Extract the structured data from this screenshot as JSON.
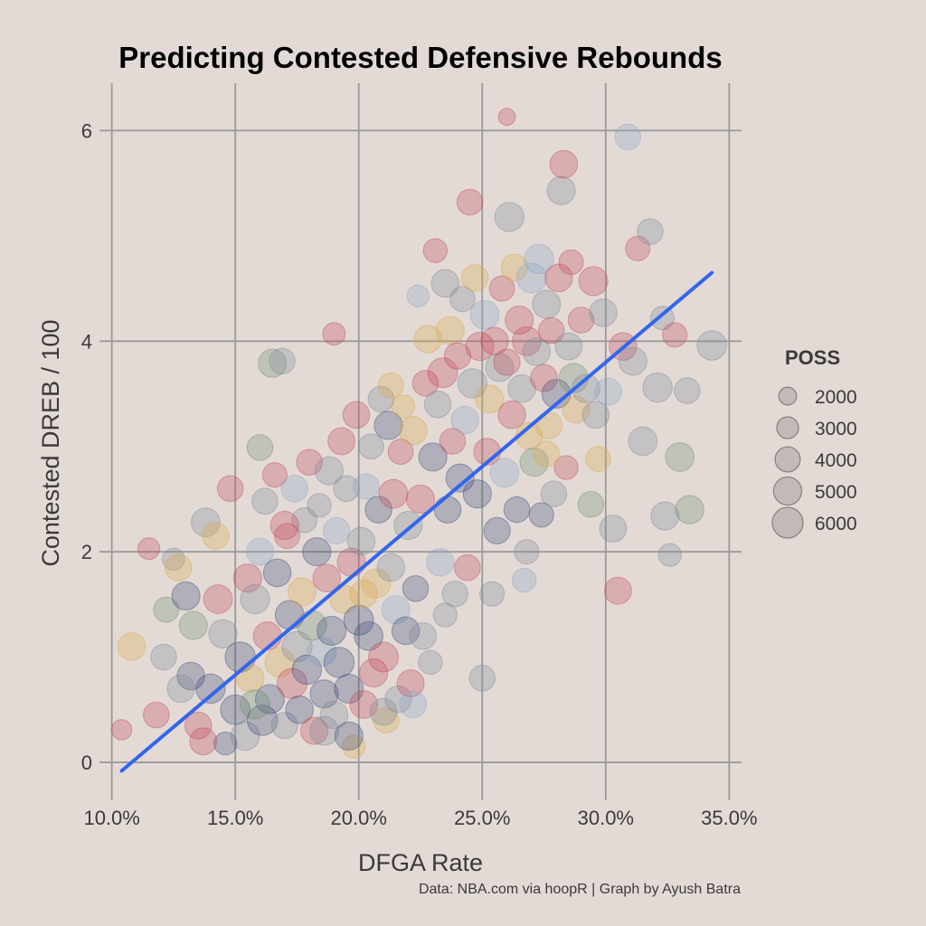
{
  "chart_data": {
    "type": "scatter",
    "title": "Predicting Contested Defensive Rebounds",
    "xlabel": "DFGA Rate",
    "ylabel": "Contested DREB / 100",
    "caption": "Data: NBA.com via hoopR | Graph by Ayush Batra",
    "xlim": [
      0.095,
      0.355
    ],
    "ylim": [
      -0.3,
      6.45
    ],
    "x_ticks": [
      0.1,
      0.15,
      0.2,
      0.25,
      0.3,
      0.35
    ],
    "x_tick_labels": [
      "10.0%",
      "15.0%",
      "20.0%",
      "25.0%",
      "30.0%",
      "35.0%"
    ],
    "y_ticks": [
      0,
      2,
      4,
      6
    ],
    "y_tick_labels": [
      "0",
      "2",
      "4",
      "6"
    ],
    "grid": true,
    "legend": {
      "title": "POSS",
      "placement": "right",
      "sizes": [
        2000,
        3000,
        4000,
        5000,
        6000
      ],
      "labels": [
        "2000",
        "3000",
        "4000",
        "5000",
        "6000"
      ]
    },
    "trend_line": {
      "x": [
        0.104,
        0.343
      ],
      "y": [
        -0.08,
        4.65
      ],
      "color": "#3366ee"
    },
    "palette": [
      "#7d8a99",
      "#3a4d7a",
      "#c24a5a",
      "#d9a84a",
      "#6f8f6f",
      "#8aa6c6",
      "#e07a7a"
    ],
    "point_opacity": 0.3,
    "points": [
      [
        0.115,
        2.03,
        3000,
        2
      ],
      [
        0.104,
        0.31,
        2600,
        2
      ],
      [
        0.108,
        1.1,
        4800,
        3
      ],
      [
        0.118,
        0.45,
        4200,
        2
      ],
      [
        0.121,
        1.0,
        4200,
        0
      ],
      [
        0.122,
        1.45,
        4000,
        4
      ],
      [
        0.125,
        1.93,
        3100,
        0
      ],
      [
        0.127,
        1.85,
        4500,
        3
      ],
      [
        0.13,
        1.58,
        5000,
        1
      ],
      [
        0.132,
        0.82,
        4800,
        1
      ],
      [
        0.135,
        0.35,
        4500,
        2
      ],
      [
        0.138,
        2.28,
        5200,
        0
      ],
      [
        0.14,
        0.7,
        5400,
        1
      ],
      [
        0.142,
        2.15,
        4500,
        3
      ],
      [
        0.145,
        1.22,
        5100,
        0
      ],
      [
        0.146,
        0.18,
        3300,
        1
      ],
      [
        0.148,
        2.6,
        4200,
        2
      ],
      [
        0.15,
        0.5,
        5500,
        1
      ],
      [
        0.152,
        1.0,
        5800,
        1
      ],
      [
        0.154,
        0.25,
        5200,
        0
      ],
      [
        0.155,
        1.75,
        5000,
        2
      ],
      [
        0.156,
        0.8,
        4800,
        3
      ],
      [
        0.158,
        1.55,
        5400,
        0
      ],
      [
        0.16,
        2.0,
        4600,
        5
      ],
      [
        0.16,
        2.99,
        4200,
        4
      ],
      [
        0.161,
        0.4,
        5800,
        1
      ],
      [
        0.162,
        2.48,
        4200,
        0
      ],
      [
        0.163,
        1.2,
        5000,
        2
      ],
      [
        0.164,
        0.6,
        5300,
        1
      ],
      [
        0.165,
        3.79,
        5000,
        4
      ],
      [
        0.166,
        2.73,
        3800,
        2
      ],
      [
        0.167,
        1.8,
        4800,
        1
      ],
      [
        0.168,
        0.95,
        5500,
        3
      ],
      [
        0.169,
        3.81,
        4200,
        0
      ],
      [
        0.17,
        0.35,
        4400,
        0
      ],
      [
        0.171,
        2.15,
        4000,
        2
      ],
      [
        0.172,
        1.4,
        5200,
        1
      ],
      [
        0.173,
        0.75,
        5600,
        2
      ],
      [
        0.174,
        2.6,
        4500,
        5
      ],
      [
        0.175,
        1.1,
        5800,
        0
      ],
      [
        0.176,
        0.5,
        4800,
        1
      ],
      [
        0.177,
        1.62,
        5000,
        3
      ],
      [
        0.178,
        2.3,
        4000,
        0
      ],
      [
        0.179,
        0.88,
        5400,
        1
      ],
      [
        0.18,
        2.85,
        4200,
        2
      ],
      [
        0.181,
        1.3,
        5500,
        4
      ],
      [
        0.182,
        0.3,
        4700,
        2
      ],
      [
        0.183,
        2.0,
        5000,
        1
      ],
      [
        0.184,
        2.44,
        3600,
        0
      ],
      [
        0.185,
        1.05,
        5200,
        5
      ],
      [
        0.186,
        0.65,
        5000,
        1
      ],
      [
        0.187,
        1.75,
        4800,
        2
      ],
      [
        0.188,
        2.77,
        5000,
        0
      ],
      [
        0.189,
        1.25,
        5300,
        1
      ],
      [
        0.19,
        4.07,
        3200,
        2
      ],
      [
        0.19,
        0.45,
        4800,
        0
      ],
      [
        0.191,
        2.2,
        4400,
        5
      ],
      [
        0.192,
        0.95,
        5800,
        1
      ],
      [
        0.193,
        3.05,
        4600,
        2
      ],
      [
        0.194,
        1.55,
        5000,
        3
      ],
      [
        0.195,
        2.6,
        4200,
        0
      ],
      [
        0.196,
        0.7,
        5300,
        1
      ],
      [
        0.197,
        1.9,
        5000,
        2
      ],
      [
        0.198,
        0.15,
        3300,
        3
      ],
      [
        0.199,
        3.3,
        4500,
        2
      ],
      [
        0.2,
        1.35,
        5600,
        1
      ],
      [
        0.201,
        2.1,
        4800,
        0
      ],
      [
        0.202,
        0.55,
        4800,
        2
      ],
      [
        0.203,
        2.62,
        4200,
        5
      ],
      [
        0.204,
        1.2,
        5200,
        1
      ],
      [
        0.205,
        3.0,
        4000,
        0
      ],
      [
        0.206,
        0.85,
        5000,
        2
      ],
      [
        0.207,
        1.7,
        5400,
        3
      ],
      [
        0.208,
        2.4,
        4500,
        1
      ],
      [
        0.209,
        3.45,
        4200,
        0
      ],
      [
        0.21,
        1.0,
        5600,
        2
      ],
      [
        0.211,
        0.4,
        4200,
        3
      ],
      [
        0.212,
        3.2,
        5000,
        1
      ],
      [
        0.213,
        1.85,
        4800,
        0
      ],
      [
        0.214,
        2.55,
        5200,
        2
      ],
      [
        0.215,
        1.45,
        5000,
        5
      ],
      [
        0.216,
        0.6,
        4500,
        0
      ],
      [
        0.217,
        2.95,
        4000,
        2
      ],
      [
        0.218,
        3.38,
        3400,
        3
      ],
      [
        0.219,
        1.25,
        4800,
        1
      ],
      [
        0.22,
        2.25,
        5000,
        0
      ],
      [
        0.221,
        0.75,
        4600,
        2
      ],
      [
        0.222,
        3.15,
        5000,
        3
      ],
      [
        0.223,
        1.65,
        4200,
        1
      ],
      [
        0.224,
        4.43,
        3000,
        5
      ],
      [
        0.225,
        2.5,
        5000,
        2
      ],
      [
        0.226,
        1.2,
        4500,
        0
      ],
      [
        0.227,
        3.6,
        4200,
        2
      ],
      [
        0.228,
        4.02,
        4800,
        3
      ],
      [
        0.229,
        0.95,
        3600,
        0
      ],
      [
        0.23,
        2.9,
        5000,
        1
      ],
      [
        0.231,
        4.86,
        3600,
        2
      ],
      [
        0.232,
        3.4,
        4500,
        0
      ],
      [
        0.233,
        1.9,
        4800,
        5
      ],
      [
        0.234,
        3.7,
        5600,
        2
      ],
      [
        0.235,
        4.55,
        4800,
        0
      ],
      [
        0.236,
        2.4,
        4500,
        1
      ],
      [
        0.237,
        4.1,
        5000,
        3
      ],
      [
        0.238,
        3.05,
        4200,
        2
      ],
      [
        0.239,
        1.6,
        4200,
        0
      ],
      [
        0.24,
        3.86,
        4400,
        2
      ],
      [
        0.241,
        2.7,
        5000,
        1
      ],
      [
        0.242,
        4.4,
        4000,
        0
      ],
      [
        0.243,
        3.25,
        4800,
        5
      ],
      [
        0.244,
        1.85,
        4200,
        2
      ],
      [
        0.245,
        5.32,
        4200,
        2
      ],
      [
        0.246,
        3.6,
        5400,
        0
      ],
      [
        0.247,
        4.6,
        4500,
        3
      ],
      [
        0.248,
        2.55,
        5000,
        1
      ],
      [
        0.249,
        3.95,
        5000,
        2
      ],
      [
        0.25,
        0.8,
        4200,
        0
      ],
      [
        0.251,
        4.25,
        5200,
        5
      ],
      [
        0.252,
        2.95,
        4500,
        2
      ],
      [
        0.253,
        3.45,
        5000,
        3
      ],
      [
        0.254,
        1.6,
        3800,
        0
      ],
      [
        0.255,
        4.0,
        4800,
        2
      ],
      [
        0.256,
        2.2,
        4400,
        1
      ],
      [
        0.257,
        3.75,
        5000,
        0
      ],
      [
        0.258,
        4.5,
        4000,
        2
      ],
      [
        0.259,
        2.75,
        5200,
        5
      ],
      [
        0.26,
        6.13,
        1800,
        2
      ],
      [
        0.261,
        5.18,
        5400,
        0
      ],
      [
        0.262,
        3.3,
        4800,
        2
      ],
      [
        0.263,
        4.7,
        4500,
        3
      ],
      [
        0.264,
        2.4,
        4200,
        1
      ],
      [
        0.265,
        4.2,
        5000,
        2
      ],
      [
        0.266,
        3.55,
        4800,
        0
      ],
      [
        0.267,
        1.73,
        3600,
        5
      ],
      [
        0.268,
        4.0,
        5200,
        2
      ],
      [
        0.269,
        3.1,
        4500,
        3
      ],
      [
        0.27,
        4.6,
        5600,
        5
      ],
      [
        0.271,
        2.85,
        5000,
        4
      ],
      [
        0.272,
        3.9,
        4800,
        0
      ],
      [
        0.273,
        4.78,
        5500,
        5
      ],
      [
        0.274,
        2.35,
        3800,
        1
      ],
      [
        0.275,
        3.65,
        4600,
        2
      ],
      [
        0.276,
        4.35,
        5000,
        0
      ],
      [
        0.277,
        3.2,
        4500,
        3
      ],
      [
        0.278,
        4.1,
        4200,
        2
      ],
      [
        0.279,
        2.55,
        4200,
        0
      ],
      [
        0.28,
        3.5,
        5200,
        1
      ],
      [
        0.281,
        4.6,
        4800,
        2
      ],
      [
        0.282,
        5.43,
        5000,
        0
      ],
      [
        0.283,
        5.68,
        4800,
        2
      ],
      [
        0.284,
        2.8,
        3600,
        2
      ],
      [
        0.285,
        3.95,
        4600,
        0
      ],
      [
        0.286,
        4.75,
        3800,
        2
      ],
      [
        0.287,
        3.65,
        5400,
        4
      ],
      [
        0.288,
        3.35,
        4600,
        3
      ],
      [
        0.29,
        4.2,
        4200,
        2
      ],
      [
        0.292,
        3.55,
        5000,
        0
      ],
      [
        0.294,
        2.45,
        4200,
        4
      ],
      [
        0.295,
        4.57,
        5300,
        2
      ],
      [
        0.296,
        3.3,
        4500,
        0
      ],
      [
        0.297,
        2.88,
        4000,
        3
      ],
      [
        0.299,
        4.27,
        4800,
        0
      ],
      [
        0.301,
        3.52,
        4600,
        5
      ],
      [
        0.303,
        2.22,
        4600,
        0
      ],
      [
        0.305,
        1.63,
        4600,
        2
      ],
      [
        0.307,
        3.95,
        4800,
        2
      ],
      [
        0.309,
        5.94,
        4200,
        5
      ],
      [
        0.311,
        3.81,
        5000,
        0
      ],
      [
        0.313,
        4.88,
        3800,
        2
      ],
      [
        0.315,
        3.05,
        5200,
        0
      ],
      [
        0.318,
        5.04,
        4200,
        0
      ],
      [
        0.321,
        3.56,
        5500,
        0
      ],
      [
        0.323,
        4.22,
        3500,
        0
      ],
      [
        0.324,
        2.34,
        5000,
        0
      ],
      [
        0.326,
        1.97,
        3300,
        0
      ],
      [
        0.328,
        4.06,
        3800,
        2
      ],
      [
        0.33,
        2.9,
        5200,
        4
      ],
      [
        0.333,
        3.53,
        4200,
        0
      ],
      [
        0.334,
        2.4,
        5100,
        4
      ],
      [
        0.343,
        3.96,
        5500,
        0
      ],
      [
        0.21,
        0.48,
        4600,
        0
      ],
      [
        0.213,
        3.58,
        4000,
        3
      ],
      [
        0.202,
        1.6,
        4800,
        3
      ],
      [
        0.186,
        0.3,
        5200,
        0
      ],
      [
        0.17,
        2.25,
        5000,
        2
      ],
      [
        0.158,
        0.55,
        5400,
        4
      ],
      [
        0.143,
        1.55,
        5200,
        2
      ],
      [
        0.137,
        0.2,
        4600,
        2
      ],
      [
        0.128,
        0.7,
        4800,
        0
      ],
      [
        0.133,
        1.3,
        5000,
        4
      ],
      [
        0.196,
        0.25,
        5000,
        1
      ],
      [
        0.222,
        0.55,
        4500,
        5
      ],
      [
        0.235,
        1.4,
        3600,
        0
      ],
      [
        0.26,
        3.8,
        4400,
        2
      ],
      [
        0.268,
        2.0,
        3800,
        0
      ],
      [
        0.276,
        2.93,
        4200,
        3
      ]
    ]
  }
}
